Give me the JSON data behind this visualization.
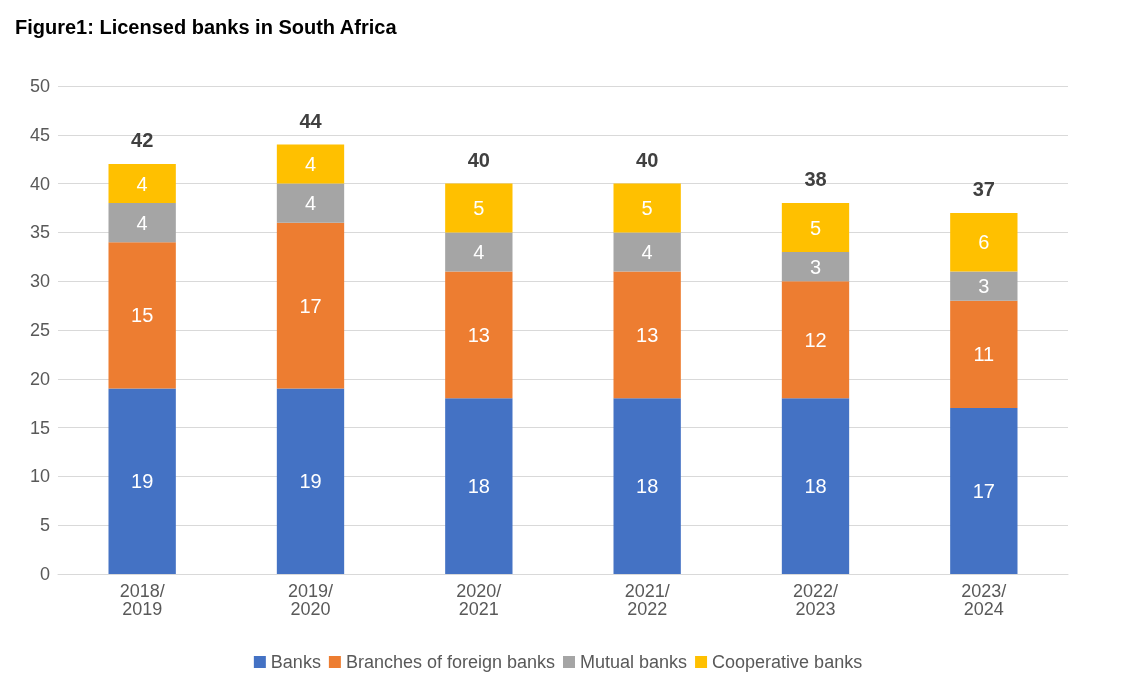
{
  "chart_data": {
    "type": "bar",
    "title": "Figure1: Licensed banks in South Africa",
    "categories": [
      "2018/2019",
      "2019/2020",
      "2020/2021",
      "2021/2022",
      "2022/2023",
      "2023/2024"
    ],
    "series": [
      {
        "name": "Banks",
        "color": "#4472c4",
        "values": [
          19,
          19,
          18,
          18,
          18,
          17
        ]
      },
      {
        "name": "Branches of foreign banks",
        "color": "#ed7d31",
        "values": [
          15,
          17,
          13,
          13,
          12,
          11
        ]
      },
      {
        "name": "Mutual banks",
        "color": "#a5a5a5",
        "values": [
          4,
          4,
          4,
          4,
          3,
          3
        ]
      },
      {
        "name": "Cooperative banks",
        "color": "#ffc000",
        "values": [
          4,
          4,
          5,
          5,
          5,
          6
        ]
      }
    ],
    "stacked": true,
    "totals": [
      "42",
      "44",
      "40",
      "40",
      "38",
      "37"
    ],
    "ylim": [
      0,
      50
    ],
    "yticks": [
      0,
      5,
      10,
      15,
      20,
      25,
      30,
      35,
      40,
      45,
      50
    ],
    "grid": "y",
    "legend": "bottom",
    "data_labels": true
  }
}
